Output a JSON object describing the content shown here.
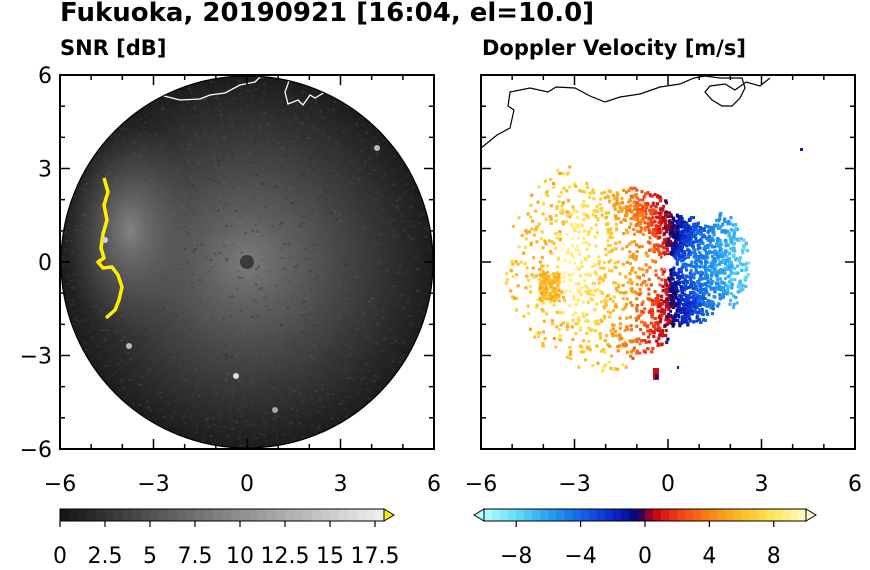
{
  "figure": {
    "title": "Fukuoka, 20190921 [16:04, el=10.0]"
  },
  "chart_data": [
    {
      "type": "heatmap",
      "title": "SNR [dB]",
      "field": "snr",
      "xlim": [
        -6,
        6
      ],
      "ylim": [
        -6,
        6
      ],
      "x_ticks": [
        "−6",
        "−3",
        "0",
        "3",
        "6"
      ],
      "y_ticks": [
        "6",
        "3",
        "0",
        "−3",
        "−6"
      ],
      "range_limit_km": 6,
      "colorbar": {
        "min": 0,
        "max": 18,
        "step": 0.5,
        "tick_labels": [
          "0",
          "2.5",
          "5",
          "7.5",
          "10",
          "12.5",
          "15",
          "17.5"
        ],
        "tick_values": [
          0,
          2.5,
          5,
          7.5,
          10,
          12.5,
          15,
          17.5
        ],
        "extend": "max",
        "colormap": "grayscale with yellow top"
      },
      "background_color": "#222222",
      "high_snr_color": "#ffee00",
      "coastline_color": "#ffffff"
    },
    {
      "type": "heatmap",
      "title": "Doppler Velocity [m/s]",
      "field": "doppler",
      "xlim": [
        -6,
        6
      ],
      "ylim": [
        -6,
        6
      ],
      "x_ticks": [
        "−6",
        "−3",
        "0",
        "3",
        "6"
      ],
      "y_ticks": [
        "6",
        "3",
        "0",
        "−3",
        "−6"
      ],
      "colorbar": {
        "min": -10,
        "max": 10,
        "step": 0.5,
        "tick_labels": [
          "−8",
          "−4",
          "0",
          "4",
          "8"
        ],
        "tick_values": [
          -8,
          -4,
          0,
          4,
          8
        ],
        "extend": "both",
        "colormap": "cyan-blue-navy | red-orange-yellow"
      },
      "coastline_color": "#000000"
    }
  ]
}
